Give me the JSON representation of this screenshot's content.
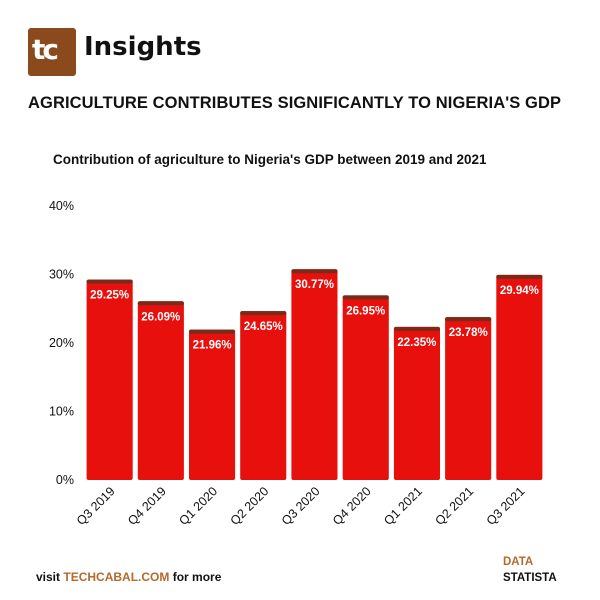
{
  "brand": {
    "logo_text": "tc",
    "name": "Insights"
  },
  "headline": "AGRICULTURE CONTRIBUTES  SIGNIFICANTLY TO NIGERIA'S GDP",
  "footer": {
    "visit_prefix": "visit ",
    "site": "TECHCABAL.COM",
    "visit_suffix": " for more",
    "source_label": "DATA",
    "source_name": "STATISTA"
  },
  "colors": {
    "bar": "#e8100c",
    "bar_cap": "#7a2a18",
    "label": "#ffffff",
    "accent": "#b5692a",
    "logo_bg": "#8a4a1c"
  },
  "chart_data": {
    "type": "bar",
    "title": "Contribution of agriculture to Nigeria's GDP between 2019 and 2021",
    "xlabel": "",
    "ylabel": "",
    "categories": [
      "Q3 2019",
      "Q4 2019",
      "Q1 2020",
      "Q2 2020",
      "Q3 2020",
      "Q4 2020",
      "Q1 2021",
      "Q2 2021",
      "Q3 2021"
    ],
    "values": [
      29.25,
      26.09,
      21.96,
      24.65,
      30.77,
      26.95,
      22.35,
      23.78,
      29.94
    ],
    "data_labels": [
      "29.25%",
      "26.09%",
      "21.96%",
      "24.65%",
      "30.77%",
      "26.95%",
      "22.35%",
      "23.78%",
      "29.94%"
    ],
    "yticks": [
      "0%",
      "10%",
      "20%",
      "30%",
      "40%"
    ],
    "ylim": [
      0,
      40
    ],
    "grid": false,
    "legend": "none"
  }
}
